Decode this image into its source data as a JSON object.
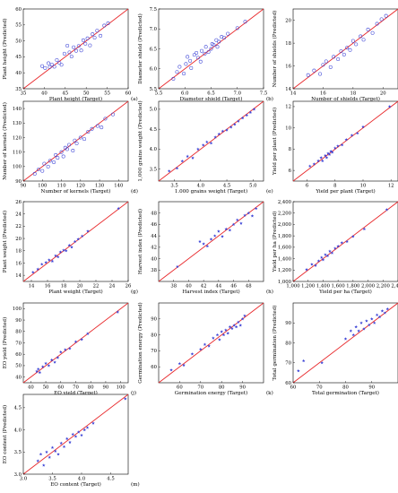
{
  "colors": {
    "identity_line": "#e8282b",
    "points": "#3b43d6",
    "axes": "#000000"
  },
  "chart_data": [
    {
      "type": "scatter",
      "panel_label": "(a)",
      "marker": "circle",
      "xlabel": "Plant height (Target)",
      "ylabel": "Plant height (Predicted)",
      "xlim": [
        35,
        60
      ],
      "ylim": [
        35,
        60
      ],
      "xticks": [
        35,
        40,
        45,
        50,
        55,
        60
      ],
      "yticks": [
        35,
        40,
        45,
        50,
        55,
        60
      ],
      "tick_labels_x": [
        "35",
        "40",
        "45",
        "50",
        "55",
        "60"
      ],
      "tick_labels_y": [
        "35",
        "40",
        "45",
        "50",
        "55",
        "60"
      ],
      "x": [
        39.5,
        40.2,
        41.0,
        41.3,
        41.8,
        42.4,
        43.0,
        43.6,
        44.1,
        44.8,
        45.5,
        46.0,
        46.5,
        47.0,
        47.6,
        48.2,
        48.8,
        49.3,
        49.8,
        50.3,
        50.9,
        51.5,
        52.0,
        52.6,
        53.4,
        54.3,
        55.2
      ],
      "y": [
        42.1,
        41.5,
        43.0,
        41.8,
        42.6,
        41.9,
        44.0,
        43.1,
        42.5,
        46.0,
        48.5,
        46.4,
        45.1,
        48.0,
        46.9,
        48.4,
        47.0,
        50.2,
        49.1,
        50.8,
        48.6,
        52.1,
        51.0,
        53.2,
        51.6,
        54.8,
        55.5
      ]
    },
    {
      "type": "scatter",
      "panel_label": "(b)",
      "marker": "circle",
      "xlabel": "Diameter shield (Target)",
      "ylabel": "Diameter shield (Predicted)",
      "xlim": [
        5.5,
        7.5
      ],
      "ylim": [
        5.5,
        7.5
      ],
      "xticks": [
        5.5,
        6.0,
        6.5,
        7.0,
        7.5
      ],
      "yticks": [
        5.5,
        6.0,
        6.5,
        7.0,
        7.5
      ],
      "tick_labels_x": [
        "5.5",
        "6.0",
        "6.5",
        "7.0",
        "7.5"
      ],
      "tick_labels_y": [
        "5.5",
        "6.0",
        "6.5",
        "7.0",
        "7.5"
      ],
      "x": [
        5.78,
        5.85,
        5.9,
        5.98,
        6.02,
        6.05,
        6.1,
        6.12,
        6.18,
        6.22,
        6.25,
        6.3,
        6.32,
        6.38,
        6.4,
        6.45,
        6.5,
        6.52,
        6.55,
        6.6,
        6.62,
        6.65,
        6.7,
        6.75,
        6.82,
        7.0,
        7.15
      ],
      "y": [
        5.75,
        5.92,
        6.05,
        5.88,
        6.12,
        6.3,
        6.2,
        6.02,
        6.35,
        6.4,
        6.28,
        6.18,
        6.45,
        6.38,
        6.55,
        6.42,
        6.5,
        6.62,
        6.6,
        6.72,
        6.55,
        6.68,
        6.8,
        6.78,
        6.88,
        7.02,
        7.18
      ]
    },
    {
      "type": "scatter",
      "panel_label": "(c)",
      "marker": "circle",
      "xlabel": "Number of shields (Target)",
      "ylabel": "Number of shields (Predicted)",
      "xlim": [
        14,
        21
      ],
      "ylim": [
        14,
        21
      ],
      "xticks": [
        14,
        16,
        18,
        20
      ],
      "yticks": [
        14,
        16,
        18,
        20
      ],
      "tick_labels_x": [
        "14",
        "16",
        "18",
        "20"
      ],
      "tick_labels_y": [
        "14",
        "16",
        "18",
        "20"
      ],
      "x": [
        15.0,
        15.4,
        15.8,
        16.0,
        16.2,
        16.5,
        16.7,
        17.0,
        17.2,
        17.4,
        17.6,
        17.8,
        18.0,
        18.2,
        18.5,
        18.7,
        19.0,
        19.3,
        19.6,
        19.9,
        20.2
      ],
      "y": [
        15.2,
        15.6,
        15.3,
        16.1,
        16.4,
        15.9,
        16.8,
        16.6,
        17.3,
        17.0,
        17.6,
        17.4,
        18.2,
        17.9,
        18.6,
        18.3,
        19.2,
        18.9,
        19.7,
        20.1,
        20.4
      ]
    },
    {
      "type": "scatter",
      "panel_label": "(d)",
      "marker": "circle",
      "xlabel": "Number of kernels (Target)",
      "ylabel": "Number of kernels (Predicted)",
      "xlim": [
        90,
        145
      ],
      "ylim": [
        90,
        145
      ],
      "xticks": [
        90,
        100,
        110,
        120,
        130,
        140
      ],
      "yticks": [
        90,
        100,
        110,
        120,
        130,
        140
      ],
      "tick_labels_x": [
        "90",
        "100",
        "110",
        "120",
        "130",
        "140"
      ],
      "tick_labels_y": [
        "90",
        "100",
        "110",
        "120",
        "130",
        "140"
      ],
      "x": [
        96,
        98,
        100,
        101,
        103,
        104,
        106,
        107,
        108,
        110,
        111,
        112,
        113,
        114,
        116,
        117,
        118,
        120,
        122,
        124,
        126,
        129,
        131,
        133,
        137
      ],
      "y": [
        95,
        98,
        97,
        102,
        100,
        104,
        103,
        108,
        106,
        110,
        107,
        113,
        112,
        115,
        111,
        118,
        116,
        120,
        119,
        124,
        126,
        128,
        127,
        133,
        136
      ]
    },
    {
      "type": "scatter",
      "panel_label": "(e)",
      "marker": "star",
      "xlabel": "1.000 grains weight (Target)",
      "ylabel": "1,000 grains weight (Predicted)",
      "xlim": [
        3.2,
        5.2
      ],
      "ylim": [
        3.2,
        5.2
      ],
      "xticks": [
        3.5,
        4.0,
        4.5,
        5.0
      ],
      "yticks": [
        3.5,
        4.0,
        4.5,
        5.0
      ],
      "tick_labels_x": [
        "3.5",
        "4.0",
        "4.5",
        "5.0"
      ],
      "tick_labels_y": [
        "3.5",
        "4.0",
        "4.5",
        "5.0"
      ],
      "x": [
        3.4,
        3.55,
        3.65,
        3.75,
        3.85,
        3.95,
        4.05,
        4.12,
        4.2,
        4.28,
        4.35,
        4.42,
        4.5,
        4.58,
        4.65,
        4.72,
        4.8,
        4.88,
        4.95,
        5.02
      ],
      "y": [
        3.45,
        3.52,
        3.7,
        3.82,
        3.78,
        4.0,
        4.1,
        4.18,
        4.15,
        4.3,
        4.38,
        4.45,
        4.48,
        4.55,
        4.62,
        4.7,
        4.78,
        4.85,
        4.92,
        5.0
      ]
    },
    {
      "type": "scatter",
      "panel_label": "(f)",
      "marker": "star",
      "xlabel": "Yield per plant (Target)",
      "ylabel": "Yield per plant (Predicted)",
      "xlim": [
        5,
        12.5
      ],
      "ylim": [
        5,
        12.5
      ],
      "xticks": [
        6,
        8,
        10,
        12
      ],
      "yticks": [
        6,
        8,
        10,
        12
      ],
      "tick_labels_x": [
        "6",
        "8",
        "10",
        "12"
      ],
      "tick_labels_y": [
        "6",
        "8",
        "10",
        "12"
      ],
      "x": [
        6.2,
        6.5,
        6.8,
        7.0,
        7.1,
        7.3,
        7.4,
        7.5,
        7.6,
        7.7,
        7.8,
        8.0,
        8.2,
        8.5,
        8.8,
        9.2,
        9.6,
        10.0,
        11.9
      ],
      "y": [
        6.4,
        6.6,
        6.9,
        7.2,
        6.9,
        7.4,
        7.2,
        7.6,
        7.5,
        7.8,
        7.7,
        8.1,
        8.3,
        8.4,
        8.9,
        9.3,
        9.5,
        10.1,
        12.0
      ]
    },
    {
      "type": "scatter",
      "panel_label": "(g)",
      "marker": "star",
      "xlabel": "Plant weight (Target)",
      "ylabel": "Plant weight (Predicted)",
      "xlim": [
        13,
        26
      ],
      "ylim": [
        13,
        26
      ],
      "xticks": [
        14,
        16,
        18,
        20,
        22,
        24,
        26
      ],
      "yticks": [
        14,
        16,
        18,
        20,
        22,
        24,
        26
      ],
      "tick_labels_x": [
        "14",
        "16",
        "18",
        "20",
        "22",
        "24",
        "26"
      ],
      "tick_labels_y": [
        "14",
        "16",
        "18",
        "20",
        "22",
        "24",
        "26"
      ],
      "x": [
        14.2,
        14.8,
        15.3,
        15.8,
        16.2,
        16.6,
        17.0,
        17.3,
        17.6,
        18.0,
        18.3,
        18.7,
        19.0,
        19.4,
        19.8,
        20.3,
        21.0,
        24.8
      ],
      "y": [
        14.5,
        15.0,
        15.8,
        16.1,
        16.5,
        16.3,
        17.2,
        17.0,
        17.8,
        18.1,
        18.0,
        18.9,
        18.6,
        19.5,
        19.9,
        20.4,
        21.2,
        24.9
      ]
    },
    {
      "type": "scatter",
      "panel_label": "(h)",
      "marker": "star",
      "xlabel": "Harvest index (Target)",
      "ylabel": "Harvest index (Predicted)",
      "xlim": [
        36,
        50
      ],
      "ylim": [
        36,
        50
      ],
      "xticks": [
        38,
        40,
        42,
        44,
        46,
        48
      ],
      "yticks": [
        38,
        40,
        42,
        44,
        46,
        48
      ],
      "tick_labels_x": [
        "38",
        "40",
        "42",
        "44",
        "46",
        "48"
      ],
      "tick_labels_y": [
        "38",
        "40",
        "42",
        "44",
        "46",
        "48"
      ],
      "x": [
        38.5,
        41.5,
        42.0,
        42.5,
        43.0,
        43.5,
        44.0,
        44.5,
        45.0,
        45.5,
        46.0,
        46.5,
        47.0,
        47.5,
        48.0,
        48.5,
        49.0
      ],
      "y": [
        38.6,
        43.0,
        42.6,
        42.2,
        43.4,
        44.0,
        44.8,
        43.9,
        45.2,
        45.0,
        46.0,
        46.8,
        46.2,
        47.6,
        48.0,
        47.5,
        48.8
      ]
    },
    {
      "type": "scatter",
      "panel_label": "(i)",
      "marker": "star",
      "xlabel": "Yield per ha (Target)",
      "ylabel": "Yield per ha (Predicted)",
      "xlim": [
        1000,
        2400
      ],
      "ylim": [
        1000,
        2400
      ],
      "xticks": [
        1000,
        1200,
        1400,
        1600,
        1800,
        2000,
        2200,
        2400
      ],
      "yticks": [
        1000,
        1200,
        1400,
        1600,
        1800,
        2000,
        2200,
        2400
      ],
      "tick_labels_x": [
        "1,000",
        "1,200",
        "1,400",
        "1,600",
        "1,800",
        "2,000",
        "2,200",
        "2,400"
      ],
      "tick_labels_y": [
        "1,000",
        "1,200",
        "1,400",
        "1,600",
        "1,800",
        "2,000",
        "2,200",
        "2,400"
      ],
      "x": [
        1180,
        1250,
        1300,
        1340,
        1380,
        1400,
        1430,
        1460,
        1490,
        1520,
        1560,
        1600,
        1650,
        1720,
        1800,
        1950,
        2250
      ],
      "y": [
        1210,
        1300,
        1280,
        1360,
        1420,
        1380,
        1470,
        1450,
        1530,
        1500,
        1580,
        1620,
        1680,
        1700,
        1790,
        1920,
        2260
      ]
    },
    {
      "type": "scatter",
      "panel_label": "(j)",
      "marker": "star",
      "xlabel": "EO yield (Target)",
      "ylabel": "EO yield (Predicted)",
      "xlim": [
        35,
        105
      ],
      "ylim": [
        35,
        105
      ],
      "xticks": [
        40,
        50,
        60,
        70,
        80,
        90,
        100
      ],
      "yticks": [
        40,
        50,
        60,
        70,
        80,
        90,
        100
      ],
      "tick_labels_x": [
        "40",
        "50",
        "60",
        "70",
        "80",
        "90",
        "100"
      ],
      "tick_labels_y": [
        "40",
        "50",
        "60",
        "70",
        "80",
        "90",
        "100"
      ],
      "x": [
        44,
        45,
        46,
        48,
        50,
        52,
        54,
        56,
        58,
        60,
        63,
        66,
        70,
        74,
        78,
        98
      ],
      "y": [
        45,
        47,
        44,
        49,
        52,
        50,
        55,
        53,
        57,
        62,
        64,
        65,
        71,
        73,
        78,
        97
      ]
    },
    {
      "type": "scatter",
      "panel_label": "(k)",
      "marker": "star",
      "xlabel": "Germination energy (Target)",
      "ylabel": "Germination energy (Predicted)",
      "xlim": [
        50,
        100
      ],
      "ylim": [
        50,
        100
      ],
      "xticks": [
        60,
        70,
        80,
        90
      ],
      "yticks": [
        60,
        70,
        80,
        90
      ],
      "tick_labels_x": [
        "60",
        "70",
        "80",
        "90"
      ],
      "tick_labels_y": [
        "60",
        "70",
        "80",
        "90"
      ],
      "x": [
        56,
        60,
        62,
        66,
        70,
        72,
        74,
        76,
        78,
        79,
        80,
        81,
        82,
        83,
        84,
        85,
        86,
        87,
        88,
        89,
        90,
        91
      ],
      "y": [
        58,
        62,
        61,
        68,
        71,
        74,
        73,
        78,
        80,
        77,
        82,
        80,
        83,
        81,
        85,
        84,
        86,
        85,
        88,
        86,
        90,
        92
      ]
    },
    {
      "type": "scatter",
      "panel_label": "(l)",
      "marker": "star",
      "xlabel": "Total germination (Target)",
      "ylabel": "Total germination (Predicted)",
      "xlim": [
        60,
        100
      ],
      "ylim": [
        60,
        100
      ],
      "xticks": [
        60,
        70,
        80,
        90
      ],
      "yticks": [
        60,
        70,
        80,
        90
      ],
      "tick_labels_x": [
        "60",
        "70",
        "80",
        "90"
      ],
      "tick_labels_y": [
        "60",
        "70",
        "80",
        "90"
      ],
      "x": [
        62,
        64,
        71,
        80,
        82,
        83,
        84,
        85,
        86,
        87,
        88,
        89,
        90,
        91,
        92,
        93,
        94,
        95,
        96
      ],
      "y": [
        66,
        71,
        70,
        82,
        86,
        84,
        88,
        86,
        90,
        87,
        91,
        89,
        92,
        90,
        94,
        93,
        96,
        95,
        97
      ]
    },
    {
      "type": "scatter",
      "panel_label": "(m)",
      "marker": "star",
      "xlabel": "EO content (Target)",
      "ylabel": "EO content (Predicted)",
      "xlim": [
        3.0,
        4.8
      ],
      "ylim": [
        3.0,
        4.8
      ],
      "xticks": [
        3.0,
        3.5,
        4.0,
        4.5
      ],
      "yticks": [
        3.0,
        3.5,
        4.0,
        4.5
      ],
      "tick_labels_x": [
        "3.0",
        "3.5",
        "4.0",
        "4.5"
      ],
      "tick_labels_y": [
        "3.0",
        "3.5",
        "4.0",
        "4.5"
      ],
      "x": [
        3.25,
        3.3,
        3.35,
        3.4,
        3.45,
        3.5,
        3.55,
        3.6,
        3.65,
        3.7,
        3.75,
        3.8,
        3.85,
        3.9,
        3.95,
        4.0,
        4.05,
        4.1,
        4.2,
        4.75
      ],
      "y": [
        3.3,
        3.45,
        3.2,
        3.5,
        3.38,
        3.6,
        3.52,
        3.45,
        3.7,
        3.62,
        3.8,
        3.72,
        3.9,
        3.85,
        3.95,
        3.88,
        4.0,
        4.05,
        4.15,
        4.7
      ]
    }
  ]
}
